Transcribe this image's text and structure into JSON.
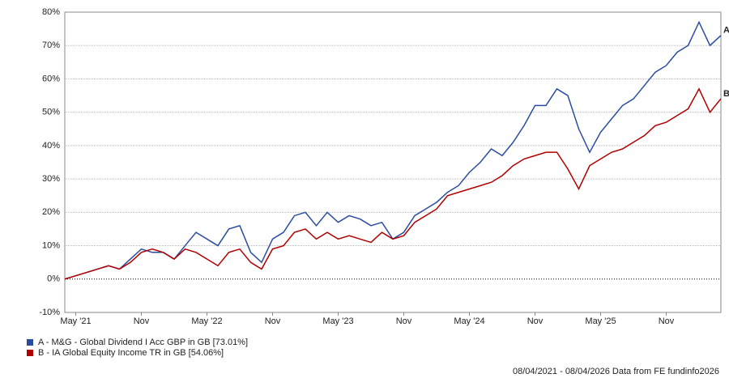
{
  "chart_data": {
    "type": "line",
    "categories": [
      null,
      "May '21",
      null,
      null,
      null,
      null,
      null,
      "Nov",
      null,
      null,
      null,
      null,
      null,
      "May '22",
      null,
      null,
      null,
      null,
      null,
      "Nov",
      null,
      null,
      null,
      null,
      null,
      "May '23",
      null,
      null,
      null,
      null,
      null,
      "Nov",
      null,
      null,
      null,
      null,
      null,
      "May '24",
      null,
      null,
      null,
      null,
      null,
      "Nov",
      null,
      null,
      null,
      null,
      null,
      "May '25",
      null,
      null,
      null,
      null,
      null,
      "Nov",
      null,
      null,
      null,
      null,
      null
    ],
    "series": [
      {
        "name": "A - M&G - Global Dividend I Acc GBP in GB [73.01%]",
        "end_label": "A",
        "color": "#2a4ca0",
        "values": [
          0,
          1,
          2,
          3,
          4,
          3,
          6,
          9,
          8,
          8,
          6,
          10,
          14,
          12,
          10,
          15,
          16,
          8,
          5,
          12,
          14,
          19,
          20,
          16,
          20,
          17,
          19,
          18,
          16,
          17,
          12,
          14,
          19,
          21,
          23,
          26,
          28,
          32,
          35,
          39,
          37,
          41,
          46,
          52,
          52,
          57,
          55,
          45,
          38,
          44,
          48,
          52,
          54,
          58,
          62,
          64,
          68,
          70,
          77,
          70,
          73.01
        ]
      },
      {
        "name": "B - IA Global Equity Income TR in GB [54.06%]",
        "end_label": "B",
        "color": "#b00000",
        "values": [
          0,
          1,
          2,
          3,
          4,
          3,
          5,
          8,
          9,
          8,
          6,
          9,
          8,
          6,
          4,
          8,
          9,
          5,
          3,
          9,
          10,
          14,
          15,
          12,
          14,
          12,
          13,
          12,
          11,
          14,
          12,
          13,
          17,
          19,
          21,
          25,
          26,
          27,
          28,
          29,
          31,
          34,
          36,
          37,
          38,
          38,
          33,
          27,
          34,
          36,
          38,
          39,
          41,
          43,
          46,
          47,
          49,
          51,
          57,
          50,
          54.06
        ]
      }
    ],
    "ylim": [
      -10,
      80
    ],
    "yticks": [
      {
        "value": -10,
        "label": "-10%"
      },
      {
        "value": 0,
        "label": "0%"
      },
      {
        "value": 10,
        "label": "10%"
      },
      {
        "value": 20,
        "label": "20%"
      },
      {
        "value": 30,
        "label": "30%"
      },
      {
        "value": 40,
        "label": "40%"
      },
      {
        "value": 50,
        "label": "50%"
      },
      {
        "value": 60,
        "label": "60%"
      },
      {
        "value": 70,
        "label": "70%"
      },
      {
        "value": 80,
        "label": "80%"
      }
    ],
    "grid": true,
    "footer": "08/04/2021 - 08/04/2026 Data from FE fundinfo2026"
  }
}
